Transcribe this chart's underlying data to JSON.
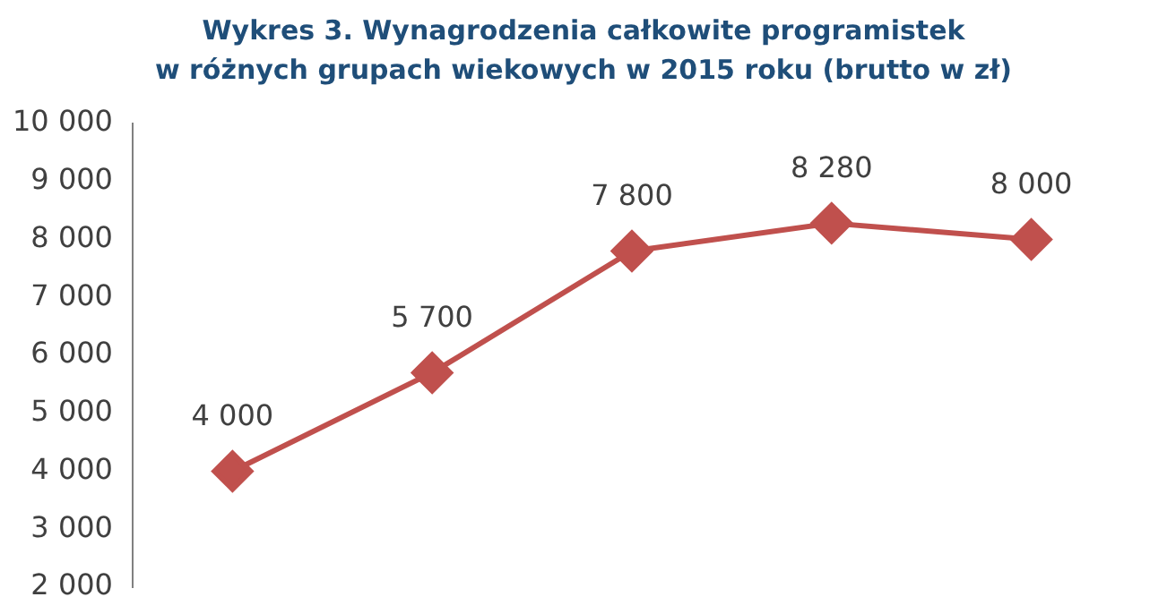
{
  "chart_data": {
    "type": "line",
    "title": "Wykres 3. Wynagrodzenia całkowite programistek\nw różnych grupach wiekowych w 2015 roku (brutto w zł)",
    "categories": [
      null,
      null,
      null,
      null,
      null
    ],
    "series": [
      {
        "color": "#c0504d",
        "values": [
          4000,
          5700,
          7800,
          8280,
          8000
        ]
      }
    ],
    "value_labels": [
      "4 000",
      "5 700",
      "7 800",
      "8 280",
      "8 000"
    ],
    "ylim": [
      2000,
      10000
    ],
    "yticks": [
      {
        "value": 2000,
        "label": "2 000"
      },
      {
        "value": 3000,
        "label": "3 000"
      },
      {
        "value": 4000,
        "label": "4 000"
      },
      {
        "value": 5000,
        "label": "5 000"
      },
      {
        "value": 6000,
        "label": "6 000"
      },
      {
        "value": 7000,
        "label": "7 000"
      },
      {
        "value": 8000,
        "label": "8 000"
      },
      {
        "value": 9000,
        "label": "9 000"
      },
      {
        "value": 10000,
        "label": "10 000"
      }
    ],
    "grid": false,
    "legend": false,
    "marker": "diamond",
    "line_style": "solid",
    "tick_labels": "y"
  }
}
